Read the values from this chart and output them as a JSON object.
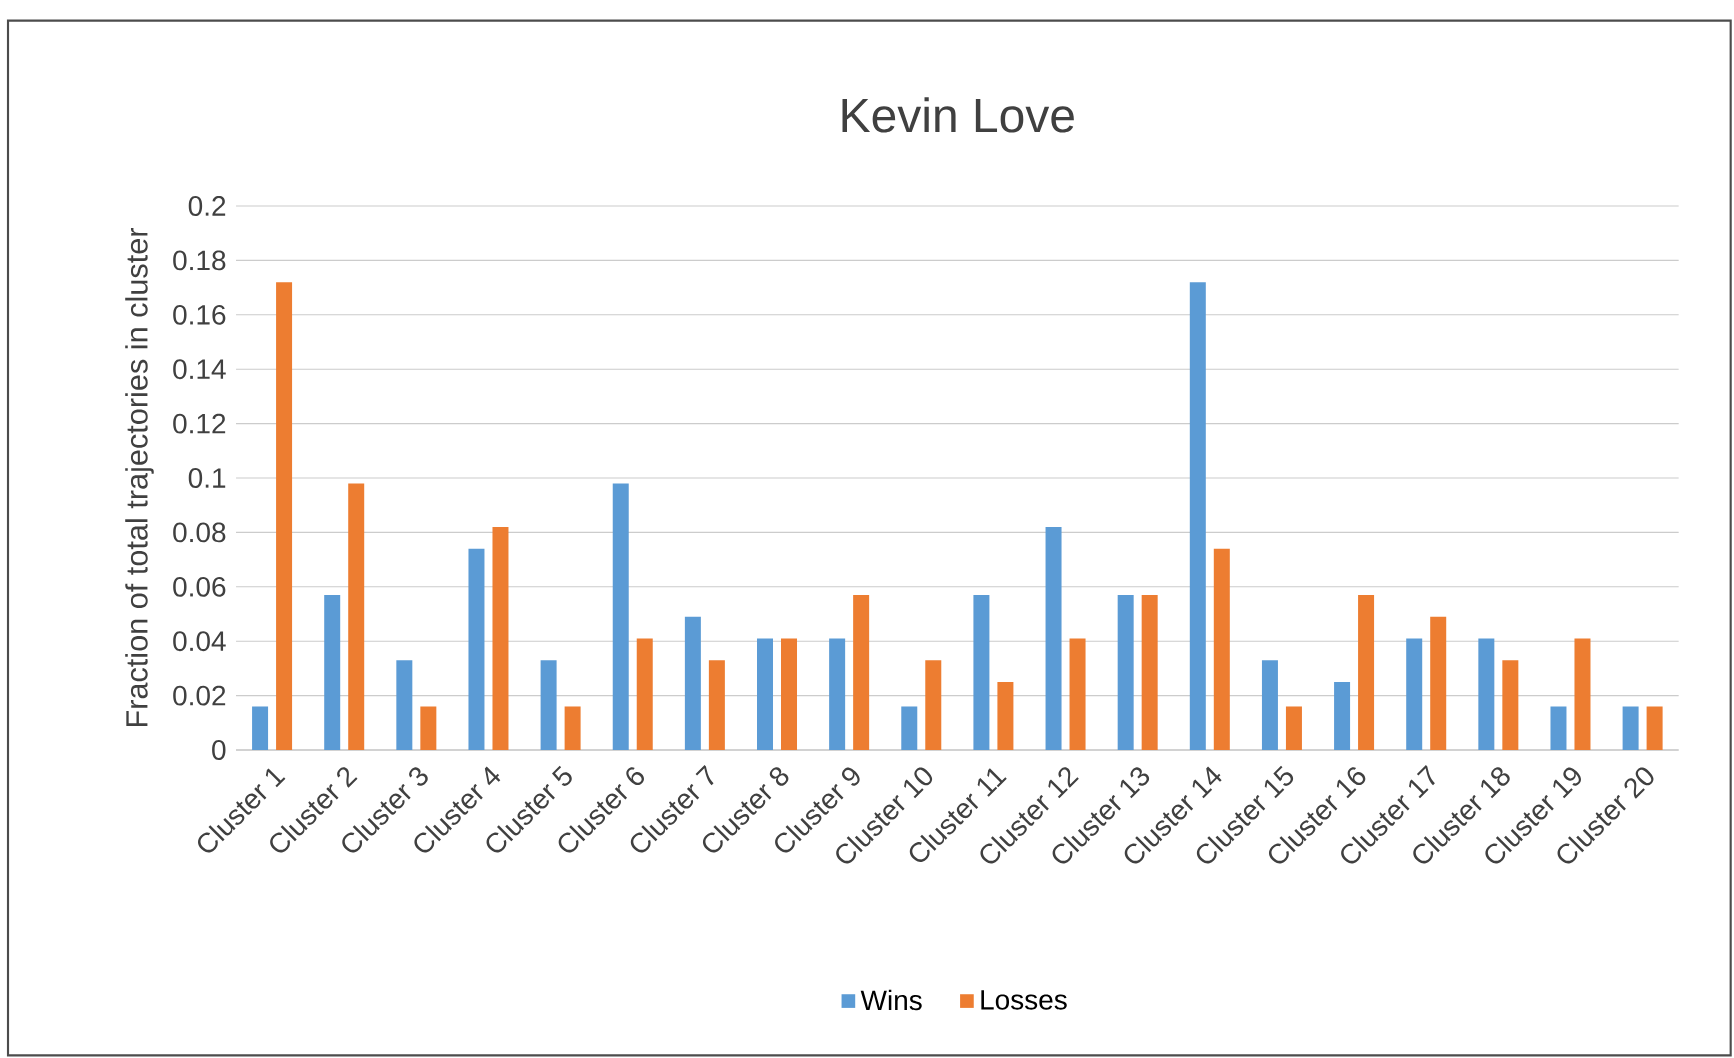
{
  "chart_data": {
    "type": "bar",
    "title": "Kevin Love",
    "ylabel": "Fraction of total trajectories in cluster",
    "categories": [
      "Cluster 1",
      "Cluster 2",
      "Cluster 3",
      "Cluster 4",
      "Cluster 5",
      "Cluster 6",
      "Cluster 7",
      "Cluster 8",
      "Cluster 9",
      "Cluster 10",
      "Cluster 11",
      "Cluster 12",
      "Cluster 13",
      "Cluster 14",
      "Cluster 15",
      "Cluster 16",
      "Cluster 17",
      "Cluster 18",
      "Cluster 19",
      "Cluster 20"
    ],
    "series": [
      {
        "name": "Wins",
        "color": "#5b9bd5",
        "values": [
          0.016,
          0.057,
          0.033,
          0.074,
          0.033,
          0.098,
          0.049,
          0.041,
          0.041,
          0.016,
          0.057,
          0.082,
          0.057,
          0.172,
          0.033,
          0.025,
          0.041,
          0.041,
          0.016,
          0.016
        ]
      },
      {
        "name": "Losses",
        "color": "#ed7d31",
        "values": [
          0.172,
          0.098,
          0.016,
          0.082,
          0.016,
          0.041,
          0.033,
          0.041,
          0.057,
          0.033,
          0.025,
          0.041,
          0.057,
          0.074,
          0.016,
          0.057,
          0.049,
          0.033,
          0.041,
          0.016
        ]
      }
    ],
    "ylim": [
      0,
      0.2
    ],
    "yticks": [
      0,
      0.02,
      0.04,
      0.06,
      0.08,
      0.1,
      0.12,
      0.14,
      0.16,
      0.18,
      0.2
    ],
    "grid": "y",
    "legend": "bottom"
  }
}
